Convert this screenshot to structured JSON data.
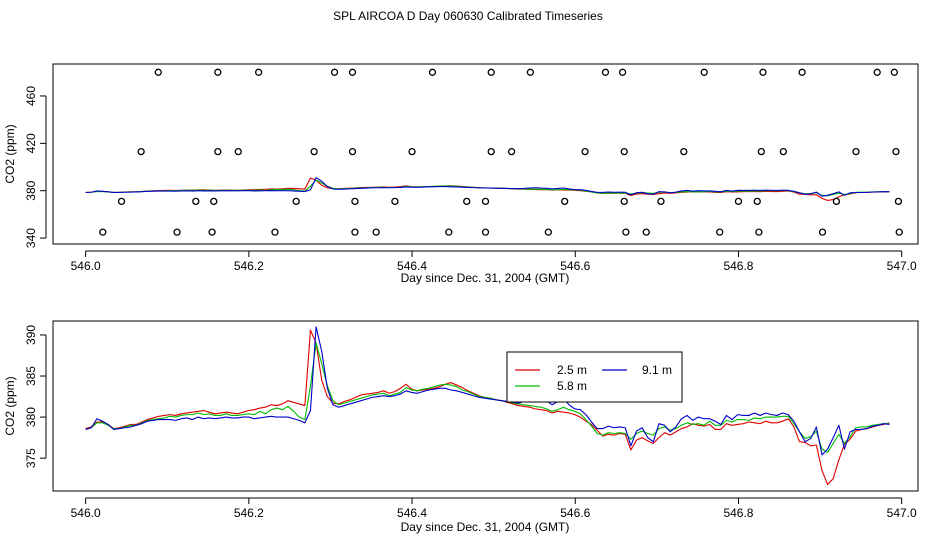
{
  "figure": {
    "title": "SPL AIRCOA D  Day 060630  Calibrated Timeseries"
  },
  "colors": {
    "c25": "#dd0000",
    "c58": "#00bb00",
    "c91": "#0000cc",
    "axis": "#000000",
    "marker": "#000000"
  },
  "chart_data": [
    {
      "type": "scatter+line",
      "xlabel": "Day since Dec. 31, 2004 (GMT)",
      "ylabel": "CO2 (ppm)",
      "xlim": [
        545.96,
        547.02
      ],
      "ylim": [
        335,
        487
      ],
      "xticks": [
        546.0,
        546.2,
        546.4,
        546.6,
        546.8,
        547.0
      ],
      "xtick_labels": [
        "546.0",
        "546.2",
        "546.4",
        "546.6",
        "546.8",
        "547.0"
      ],
      "yticks": [
        340,
        380,
        420,
        460
      ],
      "ytick_labels": [
        "340",
        "380",
        "420",
        "460"
      ],
      "markers_top": [
        546.089,
        546.162,
        546.212,
        546.305,
        546.327,
        546.425,
        546.497,
        546.545,
        546.637,
        546.658,
        546.758,
        546.83,
        546.878,
        546.97,
        546.991
      ],
      "markers_upper": [
        546.068,
        546.162,
        546.187,
        546.28,
        546.327,
        546.4,
        546.497,
        546.522,
        546.612,
        546.66,
        546.733,
        546.828,
        546.855,
        546.944,
        546.993
      ],
      "markers_lower": [
        546.044,
        546.135,
        546.157,
        546.258,
        546.33,
        546.379,
        546.467,
        546.49,
        546.587,
        546.66,
        546.705,
        546.8,
        546.823,
        546.92,
        546.996
      ],
      "markers_bottom": [
        546.021,
        546.112,
        546.155,
        546.232,
        546.33,
        546.356,
        546.445,
        546.49,
        546.567,
        546.662,
        546.687,
        546.777,
        546.825,
        546.903,
        546.997
      ],
      "marker_levels": {
        "top": 480,
        "upper": 413,
        "lower": 371,
        "bottom": 345
      }
    },
    {
      "type": "line",
      "xlabel": "Day since Dec. 31, 2004 (GMT)",
      "ylabel": "CO2 (ppm)",
      "xlim": [
        545.96,
        547.02
      ],
      "ylim": [
        371,
        391.7
      ],
      "xticks": [
        546.0,
        546.2,
        546.4,
        546.6,
        546.8,
        547.0
      ],
      "xtick_labels": [
        "546.0",
        "546.2",
        "546.4",
        "546.6",
        "546.8",
        "547.0"
      ],
      "yticks": [
        375,
        380,
        385,
        390
      ],
      "ytick_labels": [
        "375",
        "380",
        "385",
        "390"
      ],
      "legend": {
        "position": "top-center",
        "entries": [
          "2.5 m",
          "9.1 m",
          "5.8 m"
        ]
      },
      "x_range": [
        546.0,
        546.985
      ],
      "series": [
        {
          "name": "2.5 m",
          "color": "#dd0000",
          "values": [
            378.6,
            378.8,
            379.4,
            379.4,
            379.1,
            378.6,
            378.7,
            378.9,
            379.1,
            379.1,
            379.4,
            379.7,
            379.9,
            380.1,
            380.2,
            380.3,
            380.2,
            380.4,
            380.5,
            380.6,
            380.7,
            380.8,
            380.6,
            380.4,
            380.5,
            380.6,
            380.5,
            380.4,
            380.6,
            380.8,
            380.9,
            381.1,
            381.2,
            381.5,
            381.4,
            381.6,
            382.0,
            381.8,
            381.6,
            381.4,
            390.6,
            389.0,
            384.5,
            382.5,
            381.7,
            381.6,
            381.9,
            382.1,
            382.4,
            382.7,
            382.8,
            382.9,
            383.0,
            383.2,
            382.9,
            383.1,
            383.5,
            384.0,
            383.4,
            383.2,
            383.3,
            383.4,
            383.5,
            383.7,
            384.0,
            384.2,
            383.9,
            383.6,
            383.2,
            382.9,
            382.6,
            382.4,
            382.3,
            382.1,
            382.0,
            381.8,
            381.6,
            381.4,
            381.3,
            381.2,
            381.0,
            380.9,
            380.8,
            380.5,
            380.7,
            380.6,
            380.5,
            380.3,
            380.0,
            379.5,
            379.1,
            378.4,
            377.7,
            377.9,
            377.8,
            378.0,
            377.9,
            376.0,
            377.2,
            377.5,
            377.1,
            376.8,
            377.5,
            378.1,
            377.8,
            378.2,
            378.6,
            378.8,
            379.2,
            379.0,
            378.9,
            379.1,
            378.5,
            378.5,
            379.2,
            379.0,
            379.1,
            379.2,
            379.4,
            379.3,
            379.2,
            379.5,
            379.3,
            379.3,
            379.5,
            379.8,
            378.8,
            377.0,
            376.9,
            376.5,
            376.6,
            373.5,
            371.8,
            372.5,
            374.8,
            376.7,
            377.3,
            378.3,
            378.5,
            378.6,
            378.8,
            379.0,
            379.1,
            379.3
          ]
        },
        {
          "name": "5.8 m",
          "color": "#00bb00",
          "values": [
            378.5,
            378.7,
            379.3,
            379.3,
            379.0,
            378.6,
            378.6,
            378.8,
            379.0,
            379.0,
            379.3,
            379.6,
            379.7,
            379.8,
            379.9,
            380.1,
            380.0,
            380.2,
            380.3,
            380.3,
            380.5,
            380.3,
            380.4,
            380.2,
            380.2,
            380.4,
            380.2,
            380.2,
            380.3,
            380.4,
            380.3,
            380.7,
            380.4,
            380.9,
            381.1,
            380.9,
            381.3,
            380.7,
            380.0,
            379.7,
            383.8,
            389.0,
            386.5,
            383.8,
            382.0,
            381.5,
            381.7,
            381.9,
            382.1,
            382.3,
            382.5,
            382.7,
            382.8,
            382.9,
            382.6,
            382.8,
            383.0,
            383.6,
            383.3,
            383.2,
            383.4,
            383.5,
            383.7,
            383.9,
            384.0,
            383.9,
            383.7,
            383.3,
            383.1,
            382.8,
            382.5,
            382.4,
            382.3,
            382.1,
            382.0,
            381.9,
            381.7,
            381.6,
            381.5,
            381.4,
            381.3,
            381.2,
            381.0,
            380.7,
            380.9,
            381.2,
            380.9,
            380.7,
            380.4,
            379.7,
            378.9,
            378.0,
            377.8,
            378.1,
            378.0,
            378.1,
            378.0,
            377.3,
            378.0,
            378.3,
            378.0,
            377.8,
            378.6,
            378.8,
            378.4,
            378.6,
            379.0,
            379.3,
            379.1,
            379.2,
            379.0,
            379.5,
            379.0,
            379.0,
            379.6,
            379.4,
            379.7,
            379.7,
            379.6,
            379.9,
            379.8,
            380.0,
            380.0,
            380.0,
            380.1,
            380.1,
            379.2,
            378.2,
            377.4,
            377.6,
            378.3,
            376.1,
            375.7,
            376.8,
            377.9,
            376.8,
            377.6,
            378.7,
            378.8,
            378.8,
            379.0,
            379.1,
            379.2,
            379.2
          ]
        },
        {
          "name": "9.1 m",
          "color": "#0000cc",
          "values": [
            378.5,
            378.7,
            379.8,
            379.5,
            379.1,
            378.5,
            378.6,
            378.7,
            378.8,
            379.0,
            379.2,
            379.5,
            379.6,
            379.7,
            379.7,
            379.7,
            379.6,
            379.8,
            379.9,
            379.7,
            380.0,
            379.8,
            379.9,
            379.8,
            379.9,
            380.0,
            379.9,
            379.9,
            380.0,
            380.0,
            379.8,
            379.9,
            380.0,
            380.1,
            380.0,
            380.0,
            380.0,
            379.8,
            379.6,
            379.3,
            380.8,
            391.0,
            388.0,
            383.5,
            381.5,
            381.2,
            381.4,
            381.6,
            381.8,
            382.0,
            382.2,
            382.4,
            382.5,
            382.6,
            382.5,
            382.6,
            382.8,
            383.2,
            383.0,
            382.9,
            383.1,
            383.3,
            383.4,
            383.5,
            383.5,
            383.3,
            383.2,
            383.0,
            382.8,
            382.6,
            382.4,
            382.3,
            382.2,
            382.1,
            382.0,
            381.9,
            381.8,
            381.7,
            381.9,
            382.3,
            382.5,
            382.2,
            382.0,
            381.5,
            381.9,
            382.3,
            381.5,
            381.0,
            380.9,
            380.3,
            379.4,
            378.6,
            378.6,
            378.9,
            378.7,
            378.8,
            378.7,
            376.5,
            378.3,
            378.7,
            377.5,
            377.0,
            379.2,
            379.0,
            378.2,
            378.8,
            379.8,
            380.2,
            379.6,
            380.0,
            379.8,
            379.8,
            379.5,
            379.1,
            380.2,
            379.7,
            380.3,
            380.2,
            380.2,
            380.5,
            380.2,
            380.5,
            380.3,
            380.2,
            380.5,
            380.3,
            379.5,
            378.2,
            377.0,
            377.4,
            378.8,
            375.4,
            376.1,
            377.5,
            379.0,
            376.1,
            378.2,
            378.5,
            378.5,
            378.6,
            378.9,
            379.0,
            379.2,
            379.1
          ]
        }
      ]
    }
  ]
}
